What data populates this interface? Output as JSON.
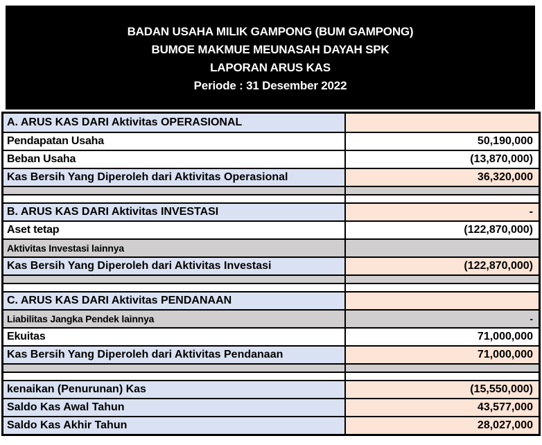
{
  "header": {
    "line1": "BADAN USAHA MILIK GAMPONG (BUM GAMPONG)",
    "line2": "BUMOE MAKMUE MEUNASAH DAYAH SPK",
    "line3": "LAPORAN ARUS KAS",
    "line4": "Periode : 31 Desember 2022"
  },
  "colors": {
    "header_bg": "#000000",
    "header_text": "#FFFFFF",
    "section_label_bg": "#D9E1F2",
    "section_value_bg": "#FCE4D6",
    "muted_row_bg": "#D0CECE",
    "grid_border": "#000000"
  },
  "table": {
    "rows": [
      {
        "label": "A. ARUS KAS DARI Aktivitas OPERASIONAL",
        "value": "",
        "style": "section"
      },
      {
        "label": "Pendapatan Usaha",
        "value": "50,190,000",
        "style": "normal"
      },
      {
        "label": "Beban Usaha",
        "value": "(13,870,000)",
        "style": "normal"
      },
      {
        "label": "Kas Bersih Yang Diperoleh dari Aktivitas Operasional",
        "value": "36,320,000",
        "style": "section"
      },
      {
        "label": "",
        "value": "",
        "style": "spacer-gray"
      },
      {
        "label": "",
        "value": "",
        "style": "spacer-white"
      },
      {
        "label": "B. ARUS KAS DARI Aktivitas INVESTASI",
        "value": "-",
        "style": "section"
      },
      {
        "label": "Aset tetap",
        "value": "(122,870,000)",
        "style": "normal"
      },
      {
        "label": "Aktivitas Investasi lainnya",
        "value": "",
        "style": "muted"
      },
      {
        "label": "Kas Bersih Yang Diperoleh dari Aktivitas Investasi",
        "value": "(122,870,000)",
        "style": "section"
      },
      {
        "label": "",
        "value": "",
        "style": "spacer-gray"
      },
      {
        "label": "",
        "value": "",
        "style": "spacer-white"
      },
      {
        "label": "C. ARUS KAS DARI Aktivitas PENDANAAN",
        "value": "",
        "style": "section"
      },
      {
        "label": "Liabilitas Jangka Pendek lainnya",
        "value": "-",
        "style": "muted"
      },
      {
        "label": "Ekuitas",
        "value": "71,000,000",
        "style": "normal"
      },
      {
        "label": "Kas Bersih Yang Diperoleh dari Aktivitas Pendanaan",
        "value": "71,000,000",
        "style": "section"
      },
      {
        "label": "",
        "value": "",
        "style": "spacer-gray"
      },
      {
        "label": "",
        "value": "",
        "style": "spacer-white"
      },
      {
        "label": "kenaikan (Penurunan) Kas",
        "value": "(15,550,000)",
        "style": "section"
      },
      {
        "label": "Saldo Kas Awal Tahun",
        "value": "43,577,000",
        "style": "section"
      },
      {
        "label": "Saldo Kas Akhir Tahun",
        "value": "28,027,000",
        "style": "section"
      }
    ]
  }
}
